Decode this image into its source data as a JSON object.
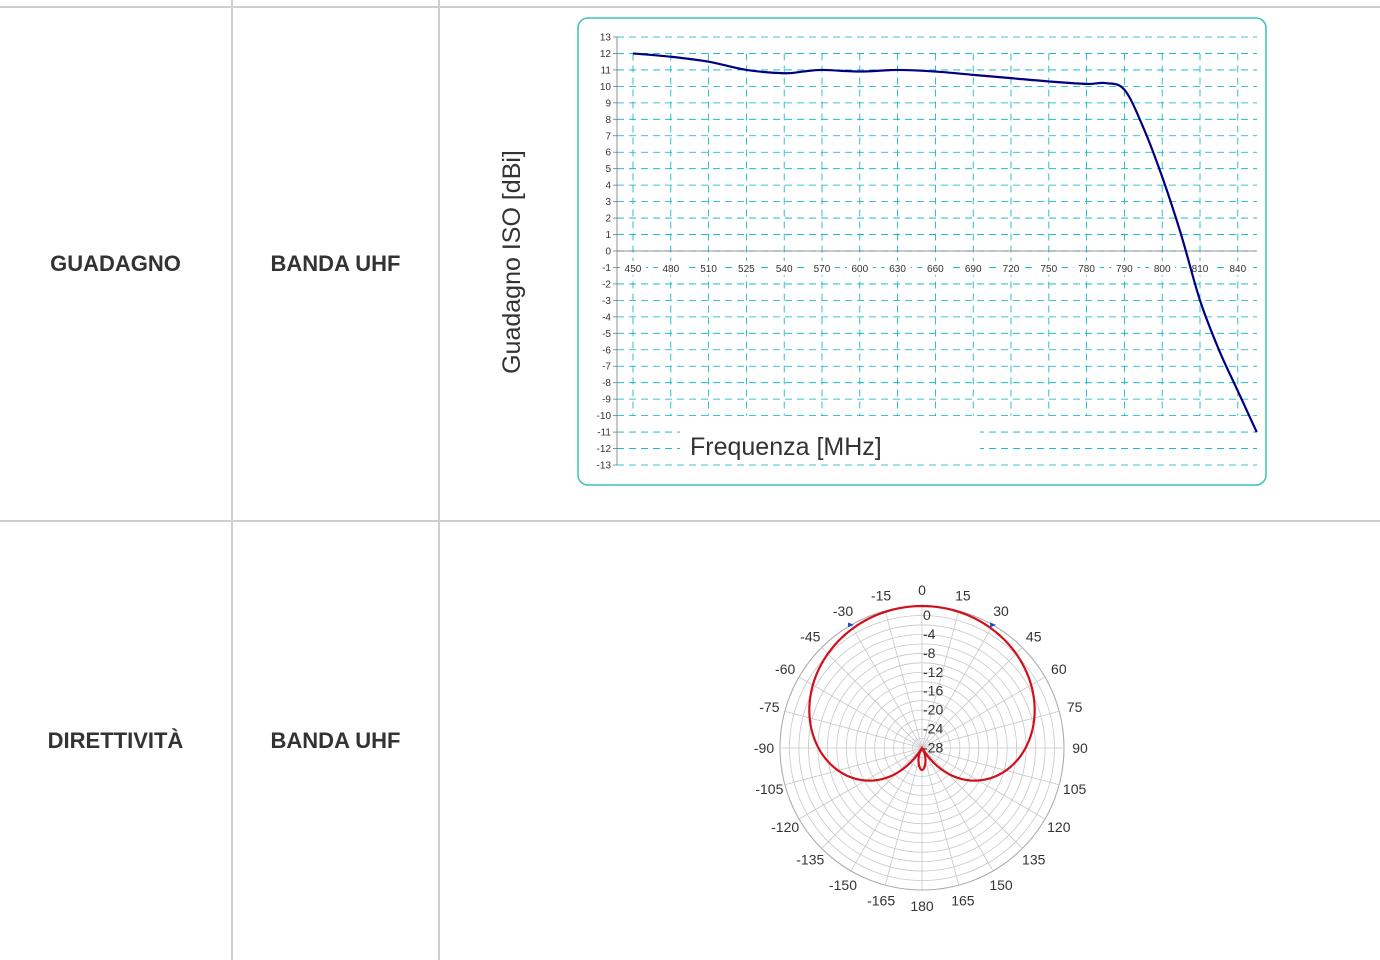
{
  "rows": [
    {
      "label": "GUADAGNO",
      "band": "BANDA UHF"
    },
    {
      "label": "DIRETTIVITÀ",
      "band": "BANDA UHF"
    }
  ],
  "colors": {
    "gain_line": "#000080",
    "gain_grid": "#00b0c0",
    "gain_frame": "#3cc0c0",
    "polar_line": "#d0101a",
    "polar_grid": "#c8c8c8",
    "marker": "#2050c0"
  },
  "chart_data": [
    {
      "type": "line",
      "title": "",
      "xlabel": "Frequenza [MHz]",
      "ylabel": "Guadagno ISO [dBi]",
      "categories": [
        "450",
        "480",
        "510",
        "525",
        "540",
        "570",
        "600",
        "630",
        "660",
        "690",
        "720",
        "750",
        "780",
        "790",
        "800",
        "810",
        "840"
      ],
      "ylim": [
        -13,
        13
      ],
      "yticks": [
        13,
        12,
        11,
        10,
        9,
        8,
        7,
        6,
        5,
        4,
        3,
        2,
        1,
        0,
        -1,
        -2,
        -3,
        -4,
        -5,
        -6,
        -7,
        -8,
        -9,
        -10,
        -11,
        -12,
        -13
      ],
      "grid": true,
      "series": [
        {
          "points": [
            [
              0,
              12.0
            ],
            [
              1,
              11.8
            ],
            [
              2,
              11.5
            ],
            [
              3,
              11.0
            ],
            [
              4,
              10.8
            ],
            [
              4.5,
              10.9
            ],
            [
              5,
              11.0
            ],
            [
              6,
              10.9
            ],
            [
              7,
              11.0
            ],
            [
              8,
              10.9
            ],
            [
              9,
              10.7
            ],
            [
              10,
              10.5
            ],
            [
              11,
              10.3
            ],
            [
              12,
              10.15
            ],
            [
              12.5,
              10.2
            ],
            [
              13,
              9.8
            ],
            [
              13.5,
              7.5
            ],
            [
              14,
              4.5
            ],
            [
              14.5,
              1.0
            ],
            [
              15,
              -3.0
            ],
            [
              15.5,
              -6.0
            ],
            [
              16,
              -8.5
            ],
            [
              16.5,
              -11.0
            ]
          ]
        }
      ]
    },
    {
      "type": "polar",
      "title": "",
      "angle_labels": [
        "0",
        "15",
        "30",
        "45",
        "60",
        "75",
        "90",
        "105",
        "120",
        "135",
        "150",
        "165",
        "180",
        "-165",
        "-150",
        "-135",
        "-120",
        "-105",
        "-90",
        "-75",
        "-60",
        "-45",
        "-30",
        "-15"
      ],
      "radial_labels": [
        "0",
        "-4",
        "-8",
        "-12",
        "-16",
        "-20",
        "-24",
        "-28"
      ],
      "rlim": [
        -30,
        0
      ],
      "grid": true,
      "series": [
        {
          "pattern": "cardioid main lobe with small back lobe at 180",
          "peak_db": 0,
          "front_to_back_db": -22
        }
      ]
    }
  ]
}
